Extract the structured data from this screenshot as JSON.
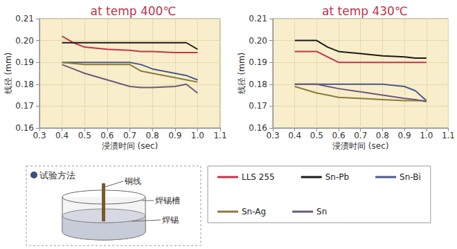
{
  "chart_data": [
    {
      "type": "line",
      "title": "at temp 400℃",
      "x_label": "浸渍时间 (sec)",
      "y_label": "线径 (mm)",
      "x": [
        0.4,
        0.45,
        0.5,
        0.6,
        0.7,
        0.75,
        0.8,
        0.9,
        0.95,
        1.0
      ],
      "series": [
        {
          "name": "LLS 255",
          "color": "#c0344a",
          "values": [
            0.202,
            0.199,
            0.197,
            0.196,
            0.1955,
            0.195,
            0.195,
            0.1945,
            0.1945,
            0.1945
          ]
        },
        {
          "name": "Sn-Pb",
          "color": "#1a1a1a",
          "values": [
            0.199,
            0.199,
            0.199,
            0.199,
            0.199,
            0.199,
            0.199,
            0.199,
            0.199,
            0.196
          ]
        },
        {
          "name": "Sn-Bi",
          "color": "#4a5a8a",
          "values": [
            0.19,
            0.19,
            0.19,
            0.19,
            0.19,
            0.189,
            0.187,
            0.185,
            0.184,
            0.182
          ]
        },
        {
          "name": "Sn-Ag",
          "color": "#8a7a3a",
          "values": [
            0.19,
            0.1895,
            0.189,
            0.189,
            0.189,
            0.186,
            0.185,
            0.183,
            0.182,
            0.181
          ]
        },
        {
          "name": "Sn",
          "color": "#6a5a7a",
          "values": [
            0.189,
            0.187,
            0.185,
            0.182,
            0.179,
            0.1785,
            0.1785,
            0.179,
            0.18,
            0.176
          ]
        }
      ],
      "xlim": [
        0.3,
        1.1
      ],
      "ylim": [
        0.16,
        0.21
      ],
      "xticks": [
        0.3,
        0.4,
        0.5,
        0.6,
        0.7,
        0.8,
        0.9,
        {
          "value": 1.0,
          "label": "1.0"
        },
        1.1
      ],
      "yticks": [
        0.16,
        0.17,
        0.18,
        0.19,
        {
          "value": 0.2,
          "label": "0.20"
        },
        0.21
      ],
      "grid": true,
      "legend": "bottom-right"
    },
    {
      "type": "line",
      "title": "at temp 430℃",
      "x_label": "浸渍时间 (sec)",
      "y_label": "线径 (mm)",
      "x": [
        0.4,
        0.5,
        0.55,
        0.6,
        0.7,
        0.8,
        0.9,
        0.95,
        1.0
      ],
      "series": [
        {
          "name": "LLS 255",
          "color": "#c0344a",
          "values": [
            0.195,
            0.195,
            0.1925,
            0.19,
            0.19,
            0.19,
            0.19,
            0.19,
            0.19
          ]
        },
        {
          "name": "Sn-Pb",
          "color": "#1a1a1a",
          "values": [
            0.2,
            0.2,
            0.197,
            0.195,
            0.194,
            0.193,
            0.1925,
            0.192,
            0.192
          ]
        },
        {
          "name": "Sn-Bi",
          "color": "#4a5a8a",
          "values": [
            0.18,
            0.18,
            0.18,
            0.18,
            0.18,
            0.18,
            0.179,
            0.177,
            0.1725
          ]
        },
        {
          "name": "Sn-Ag",
          "color": "#8a7a3a",
          "values": [
            0.179,
            0.176,
            0.175,
            0.174,
            0.1735,
            0.173,
            0.1725,
            0.1725,
            0.1725
          ]
        },
        {
          "name": "Sn",
          "color": "#6a5a7a",
          "values": [
            0.18,
            0.18,
            0.179,
            0.178,
            0.1765,
            0.175,
            0.1735,
            0.173,
            0.172
          ]
        }
      ],
      "xlim": [
        0.3,
        1.1
      ],
      "ylim": [
        0.16,
        0.21
      ],
      "xticks": [
        0.3,
        0.4,
        0.5,
        0.6,
        0.7,
        0.8,
        0.9,
        {
          "value": 1.0,
          "label": "1.0"
        },
        1.1
      ],
      "yticks": [
        0.16,
        0.17,
        0.18,
        0.19,
        {
          "value": 0.2,
          "label": "0.20"
        },
        0.21
      ],
      "grid": true
    }
  ],
  "diagram": {
    "title": "试验方法",
    "labels": {
      "wire": "铜线",
      "bath": "焊锡槽",
      "solder": "焊锡"
    }
  }
}
